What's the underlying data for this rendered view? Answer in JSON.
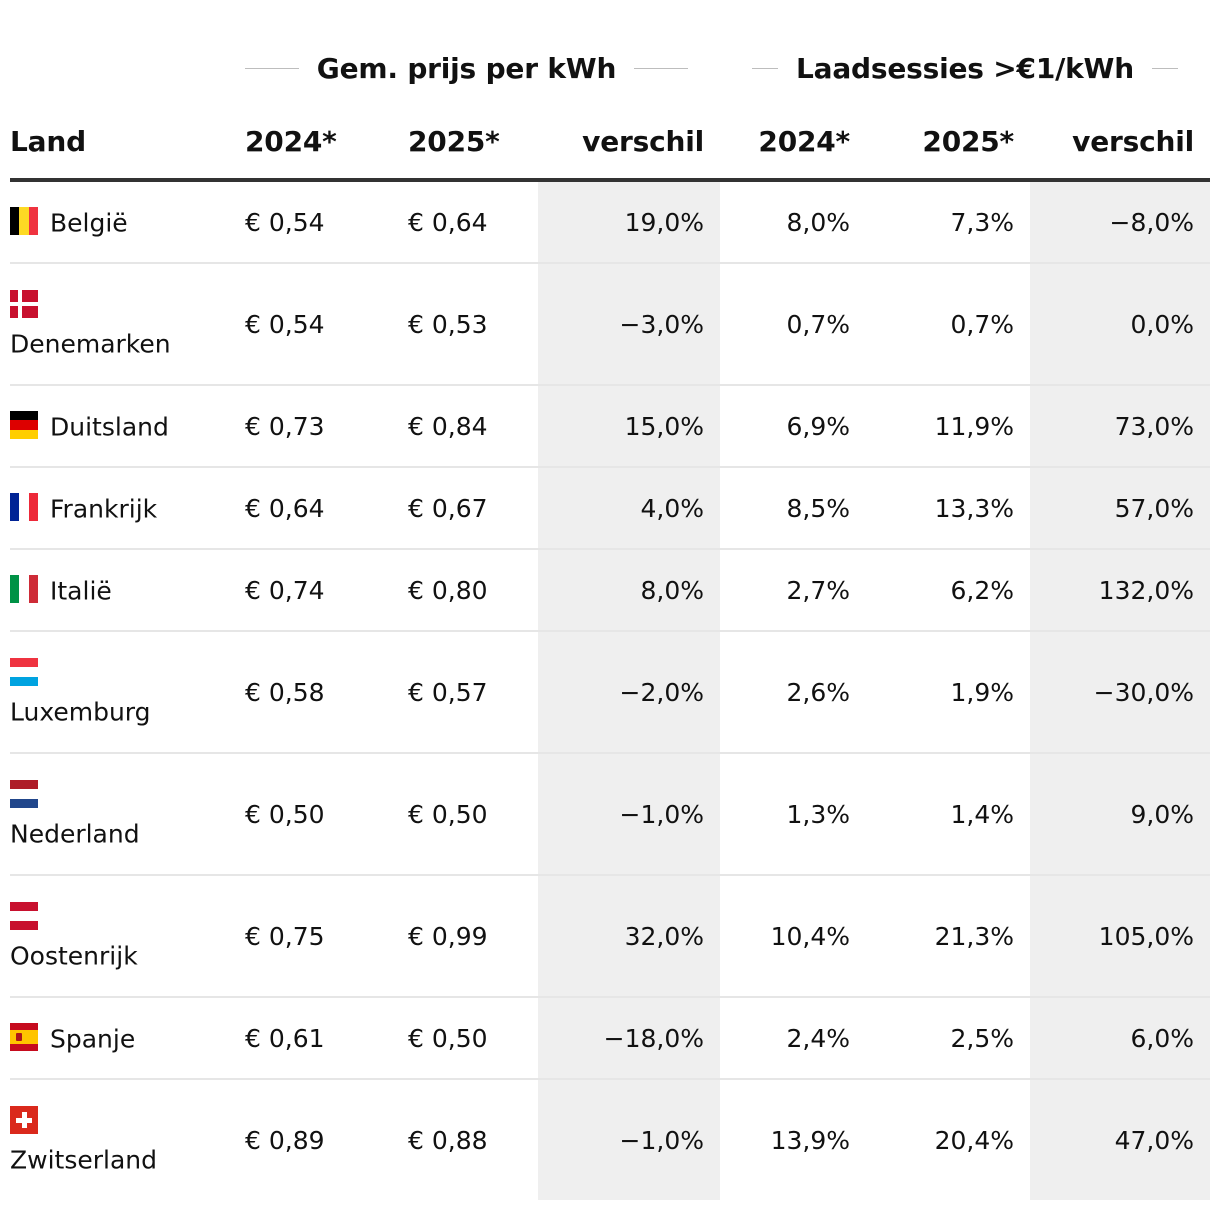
{
  "chart_data": {
    "type": "table",
    "group_headers": [
      "Gem. prijs per kWh",
      "Laadsessies >€1/kWh"
    ],
    "columns": [
      "Land",
      "2024*",
      "2025*",
      "verschil",
      "2024*",
      "2025*",
      "verschil"
    ],
    "rows": [
      {
        "country": "België",
        "flag": "belgium-flag-icon",
        "price_2024": "€ 0,54",
        "price_2025": "€ 0,64",
        "price_diff": "19,0%",
        "sessions_2024": "8,0%",
        "sessions_2025": "7,3%",
        "sessions_diff": "−8,0%"
      },
      {
        "country": "Denemarken",
        "flag": "denmark-flag-icon",
        "price_2024": "€ 0,54",
        "price_2025": "€ 0,53",
        "price_diff": "−3,0%",
        "sessions_2024": "0,7%",
        "sessions_2025": "0,7%",
        "sessions_diff": "0,0%"
      },
      {
        "country": "Duitsland",
        "flag": "germany-flag-icon",
        "price_2024": "€ 0,73",
        "price_2025": "€ 0,84",
        "price_diff": "15,0%",
        "sessions_2024": "6,9%",
        "sessions_2025": "11,9%",
        "sessions_diff": "73,0%"
      },
      {
        "country": "Frankrijk",
        "flag": "france-flag-icon",
        "price_2024": "€ 0,64",
        "price_2025": "€ 0,67",
        "price_diff": "4,0%",
        "sessions_2024": "8,5%",
        "sessions_2025": "13,3%",
        "sessions_diff": "57,0%"
      },
      {
        "country": "Italië",
        "flag": "italy-flag-icon",
        "price_2024": "€ 0,74",
        "price_2025": "€ 0,80",
        "price_diff": "8,0%",
        "sessions_2024": "2,7%",
        "sessions_2025": "6,2%",
        "sessions_diff": "132,0%"
      },
      {
        "country": "Luxemburg",
        "flag": "luxembourg-flag-icon",
        "price_2024": "€ 0,58",
        "price_2025": "€ 0,57",
        "price_diff": "−2,0%",
        "sessions_2024": "2,6%",
        "sessions_2025": "1,9%",
        "sessions_diff": "−30,0%"
      },
      {
        "country": "Nederland",
        "flag": "netherlands-flag-icon",
        "price_2024": "€ 0,50",
        "price_2025": "€ 0,50",
        "price_diff": "−1,0%",
        "sessions_2024": "1,3%",
        "sessions_2025": "1,4%",
        "sessions_diff": "9,0%"
      },
      {
        "country": "Oostenrijk",
        "flag": "austria-flag-icon",
        "price_2024": "€ 0,75",
        "price_2025": "€ 0,99",
        "price_diff": "32,0%",
        "sessions_2024": "10,4%",
        "sessions_2025": "21,3%",
        "sessions_diff": "105,0%"
      },
      {
        "country": "Spanje",
        "flag": "spain-flag-icon",
        "price_2024": "€ 0,61",
        "price_2025": "€ 0,50",
        "price_diff": "−18,0%",
        "sessions_2024": "2,4%",
        "sessions_2025": "2,5%",
        "sessions_diff": "6,0%"
      },
      {
        "country": "Zwitserland",
        "flag": "switzerland-flag-icon",
        "price_2024": "€ 0,89",
        "price_2025": "€ 0,88",
        "price_diff": "−1,0%",
        "sessions_2024": "13,9%",
        "sessions_2025": "20,4%",
        "sessions_diff": "47,0%"
      }
    ],
    "shaded_columns": [
      "verschil"
    ],
    "colors": {
      "text": "#111111",
      "shade": "#efefef",
      "header_rule": "#333333",
      "row_rule": "#e6e6e6",
      "group_rule": "#bdbdbd"
    }
  }
}
